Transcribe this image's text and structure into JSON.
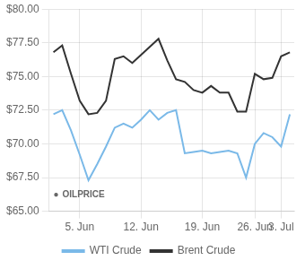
{
  "chart_data": {
    "type": "line",
    "x": [
      0,
      1,
      2,
      3,
      4,
      5,
      6,
      7,
      8,
      9,
      10,
      11,
      12,
      13,
      14,
      15,
      16,
      17,
      18,
      19,
      20,
      21,
      22,
      23,
      24,
      25,
      26,
      27
    ],
    "series": [
      {
        "name": "WTI Crude",
        "color": "#7ab9e8",
        "values": [
          72.2,
          72.5,
          71.0,
          69.2,
          67.3,
          68.5,
          69.8,
          71.2,
          71.5,
          71.2,
          71.8,
          72.5,
          71.8,
          72.3,
          72.5,
          69.3,
          69.4,
          69.5,
          69.3,
          69.4,
          69.5,
          69.3,
          67.5,
          70.0,
          70.8,
          70.5,
          69.8,
          72.2
        ]
      },
      {
        "name": "Brent Crude",
        "color": "#333333",
        "values": [
          76.8,
          77.3,
          75.2,
          73.2,
          72.2,
          72.3,
          73.2,
          76.3,
          76.5,
          76.0,
          76.6,
          77.2,
          77.8,
          76.2,
          74.8,
          74.6,
          74.0,
          73.8,
          74.3,
          73.8,
          73.8,
          72.4,
          72.4,
          75.2,
          74.8,
          74.9,
          76.5,
          76.8
        ]
      }
    ],
    "xlim": [
      -0.5,
      27.5
    ],
    "xticks": [
      {
        "value": 3,
        "label": "5. Jun"
      },
      {
        "value": 10,
        "label": "12. Jun"
      },
      {
        "value": 17,
        "label": "19. Jun"
      },
      {
        "value": 23,
        "label": "26. Jun"
      },
      {
        "value": 26,
        "label": "3. Jul"
      }
    ],
    "ylim": [
      65.0,
      80.0
    ],
    "yticks": [
      {
        "value": 65.0,
        "label": "$65.00"
      },
      {
        "value": 67.5,
        "label": "$67.50"
      },
      {
        "value": 70.0,
        "label": "$70.00"
      },
      {
        "value": 72.5,
        "label": "$72.50"
      },
      {
        "value": 75.0,
        "label": "$75.00"
      },
      {
        "value": 77.5,
        "label": "$77.50"
      },
      {
        "value": 80.0,
        "label": "$80.00"
      }
    ],
    "grid": true,
    "legend": "bottom",
    "annotations": [
      "●",
      "OILPRICE"
    ]
  }
}
